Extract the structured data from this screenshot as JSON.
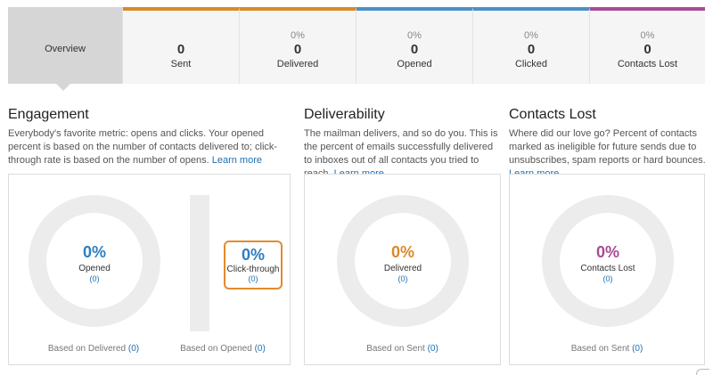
{
  "tabs": [
    {
      "label": "Overview",
      "pct": "",
      "num": "",
      "color": "#d6d6d6"
    },
    {
      "label": "Sent",
      "pct": "",
      "num": "0",
      "color": "#d9892b"
    },
    {
      "label": "Delivered",
      "pct": "0%",
      "num": "0",
      "color": "#d9892b"
    },
    {
      "label": "Opened",
      "pct": "0%",
      "num": "0",
      "color": "#4a90c9"
    },
    {
      "label": "Clicked",
      "pct": "0%",
      "num": "0",
      "color": "#4a90c9"
    },
    {
      "label": "Contacts Lost",
      "pct": "0%",
      "num": "0",
      "color": "#a64c93"
    }
  ],
  "engagement": {
    "title": "Engagement",
    "desc": "Everybody's favorite metric: opens and clicks. Your opened percent is based on the number of contacts delivered to; click-through rate is based on the number of opens.",
    "link": "Learn more",
    "opened": {
      "pct": "0%",
      "label": "Opened",
      "count": "(0)",
      "color": "#2d7fc1"
    },
    "opened_basis": {
      "text": "Based on Delivered",
      "count": "(0)"
    },
    "clickthrough": {
      "pct": "0%",
      "label": "Click-through",
      "count": "(0)",
      "color": "#2d7fc1"
    },
    "clickthrough_basis": {
      "text": "Based on Opened",
      "count": "(0)"
    }
  },
  "deliverability": {
    "title": "Deliverability",
    "desc": "The mailman delivers, and so do you. This is the percent of emails successfully delivered to inboxes out of all contacts you tried to reach.",
    "link": "Learn more",
    "ring": {
      "pct": "0%",
      "label": "Delivered",
      "count": "(0)",
      "color": "#d9892b"
    },
    "basis": {
      "text": "Based on Sent",
      "count": "(0)"
    }
  },
  "contacts_lost": {
    "title": "Contacts Lost",
    "desc": "Where did our love go? Percent of contacts marked as ineligible for future sends due to unsubscribes, spam reports or hard bounces.",
    "link": "Learn more",
    "ring": {
      "pct": "0%",
      "label": "Contacts Lost",
      "count": "(0)",
      "color": "#a64c93"
    },
    "basis": {
      "text": "Based on Sent",
      "count": "(0)"
    }
  }
}
